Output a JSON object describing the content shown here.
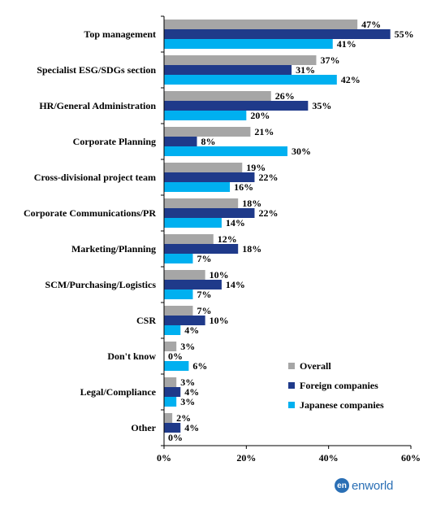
{
  "chart_data": {
    "type": "bar",
    "orientation": "horizontal",
    "categories": [
      "Top management",
      "Specialist ESG/SDGs section",
      "HR/General Administration",
      "Corporate Planning",
      "Cross-divisional project team",
      "Corporate Communications/PR",
      "Marketing/Planning",
      "SCM/Purchasing/Logistics",
      "CSR",
      "Don't know",
      "Legal/Compliance",
      "Other"
    ],
    "series": [
      {
        "name": "Overall",
        "color": "#a6a6a6",
        "values": [
          47,
          37,
          26,
          21,
          19,
          18,
          12,
          10,
          7,
          3,
          3,
          2
        ],
        "labels": [
          "47%",
          "37%",
          "26%",
          "21%",
          "19%",
          "18%",
          "12%",
          "10%",
          "7%",
          "3%",
          "3%",
          "2%"
        ]
      },
      {
        "name": "Foreign companies",
        "color": "#1f3a8a",
        "values": [
          55,
          31,
          35,
          8,
          22,
          22,
          18,
          14,
          10,
          0,
          4,
          4
        ],
        "labels": [
          "55%",
          "31%",
          "35%",
          "8%",
          "22%",
          "22%",
          "18%",
          "14%",
          "10%",
          "0%",
          "4%",
          "4%"
        ]
      },
      {
        "name": "Japanese companies",
        "color": "#00b0f0",
        "values": [
          41,
          42,
          20,
          30,
          16,
          14,
          7,
          7,
          4,
          6,
          3,
          0
        ],
        "labels": [
          "41%",
          "42%",
          "20%",
          "30%",
          "16%",
          "14%",
          "7%",
          "7%",
          "4%",
          "6%",
          "3%",
          "0%"
        ]
      }
    ],
    "xlim": [
      0,
      60
    ],
    "x_ticks": [
      0,
      20,
      40,
      60
    ],
    "x_tick_labels": [
      "0%",
      "20%",
      "40%",
      "60%"
    ],
    "grid": false,
    "legend_position": "bottom-right"
  },
  "logo": {
    "mark": "en",
    "text": "enworld"
  }
}
